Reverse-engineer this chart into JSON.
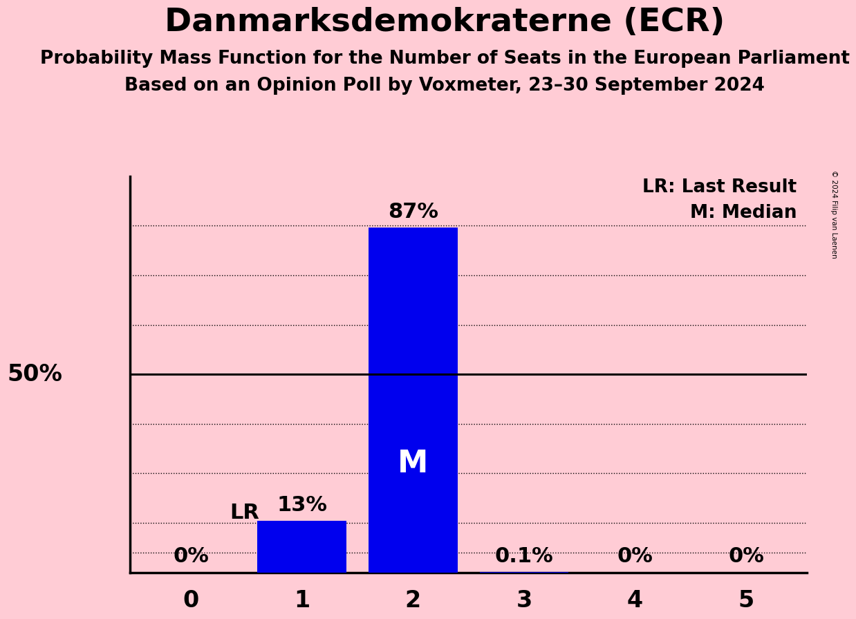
{
  "title": "Danmarksdemokraterne (ECR)",
  "subtitle1": "Probability Mass Function for the Number of Seats in the European Parliament",
  "subtitle2": "Based on an Opinion Poll by Voxmeter, 23–30 September 2024",
  "copyright": "© 2024 Filip van Laenen",
  "categories": [
    0,
    1,
    2,
    3,
    4,
    5
  ],
  "values": [
    0.0,
    0.13,
    0.87,
    0.001,
    0.0,
    0.0
  ],
  "bar_labels": [
    "0%",
    "13%",
    "87%",
    "0.1%",
    "0%",
    "0%"
  ],
  "bar_color": "#0000ee",
  "background_color": "#ffccd5",
  "median_seat": 2,
  "last_result_seat": 1,
  "ylim_max": 1.0,
  "ylabel_50": "50%",
  "legend_lr": "LR: Last Result",
  "legend_m": "M: Median",
  "hline_50": 0.5,
  "title_fontsize": 34,
  "subtitle_fontsize": 19,
  "label_fontsize": 22,
  "tick_fontsize": 24,
  "ylabel_fontsize": 24,
  "copyright_fontsize": 7.5,
  "dotted_levels": [
    0.125,
    0.25,
    0.375,
    0.625,
    0.75,
    0.875
  ],
  "extra_dotted": 0.05
}
